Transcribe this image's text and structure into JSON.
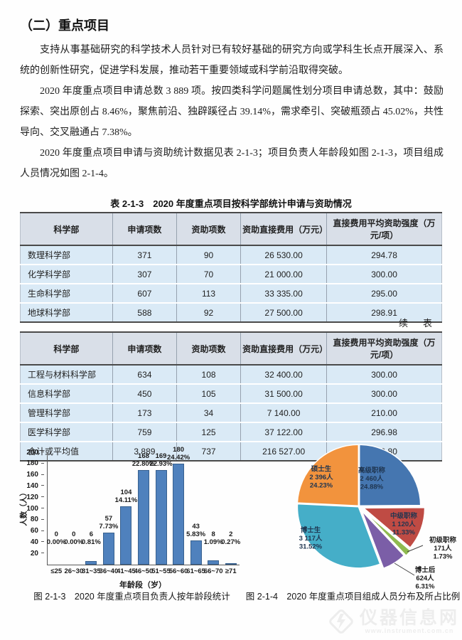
{
  "page": {
    "section_title": "（二）重点项目",
    "paragraphs": [
      "支持从事基础研究的科学技术人员针对已有较好基础的研究方向或学科生长点开展深入、系统的创新性研究，促进学科发展，推动若干重要领域或科学前沿取得突破。",
      "2020 年度重点项目申请总数 3 889 项。按四类科学问题属性划分项目申请总数，其中：鼓励探索、突出原创占 8.46%，聚焦前沿、独辟蹊径占 39.14%，需求牵引、突破瓶颈占 45.02%，共性导向、交叉融通占 7.38%。",
      "2020 年度重点项目申请与资助统计数据见表 2-1-3；项目负责人年龄段如图 2-1-3，项目组成人员情况如图 2-1-4。"
    ]
  },
  "table1": {
    "title": "表 2-1-3　2020 年度重点项目按科学部统计申请与资助情况",
    "headers": [
      "科学部",
      "申请项数",
      "资助项数",
      "资助直接费用（万元）",
      "直接费用平均资助强度（万元/项）"
    ],
    "rows": [
      [
        "数理科学部",
        "371",
        "90",
        "26 530.00",
        "294.78"
      ],
      [
        "化学科学部",
        "307",
        "70",
        "21 000.00",
        "300.00"
      ],
      [
        "生命科学部",
        "607",
        "113",
        "33 335.00",
        "295.00"
      ],
      [
        "地球科学部",
        "588",
        "92",
        "27 500.00",
        "298.91"
      ]
    ]
  },
  "table2": {
    "continuation_label": "续　表",
    "headers": [
      "科学部",
      "申请项数",
      "资助项数",
      "资助直接费用（万元）",
      "直接费用平均资助强度（万元/项）"
    ],
    "rows": [
      [
        "工程与材料科学部",
        "634",
        "108",
        "32 400.00",
        "300.00"
      ],
      [
        "信息科学部",
        "450",
        "105",
        "31 500.00",
        "300.00"
      ],
      [
        "管理科学部",
        "173",
        "34",
        "7 140.00",
        "210.00"
      ],
      [
        "医学科学部",
        "759",
        "125",
        "37 122.00",
        "296.98"
      ],
      [
        "合计或平均值",
        "3 889",
        "737",
        "216 527.00",
        "293.80"
      ]
    ]
  },
  "chart_data": [
    {
      "type": "bar",
      "caption": "图 2-1-3　2020 年度重点项目负责人按年龄段统计",
      "categories": [
        "≤25",
        "26~30",
        "31~35",
        "36~40",
        "41~45",
        "46~50",
        "51~55",
        "56~60",
        "61~65",
        "66~70",
        "≥71"
      ],
      "values": [
        0,
        0,
        6,
        57,
        104,
        168,
        169,
        180,
        43,
        8,
        2
      ],
      "percent_labels": [
        "0.00%",
        "0.00%",
        "0.81%",
        "7.73%",
        "14.11%",
        "22.80%",
        "22.93%",
        "24.42%",
        "5.83%",
        "1.09%",
        "0.27%"
      ],
      "xlabel": "年龄段（岁）",
      "ylabel": "人数（人）",
      "ylim": [
        0,
        200
      ],
      "ytick_step": 20,
      "grid": false,
      "legend": "none",
      "bar_color": "#4f81bd"
    },
    {
      "type": "pie",
      "caption": "图 2-1-4　2020 年度重点项目组成人员分布及所占比例",
      "slices": [
        {
          "label": "高级职称",
          "count": "2 460人",
          "percent": "24.88%",
          "value": 24.88,
          "color": "#4576b0",
          "explode": 1,
          "label_at": [
            178,
            60
          ],
          "label_style": "inside"
        },
        {
          "label": "中级职称",
          "count": "1 120人",
          "percent": "11.33%",
          "value": 11.33,
          "color": "#bf4b44",
          "explode": 7,
          "label_at": [
            223,
            124
          ],
          "label_style": "inside"
        },
        {
          "label": "初级职称",
          "count": "171人",
          "percent": "1.73%",
          "value": 1.73,
          "color": "#8fba50",
          "explode": 10,
          "label_at": [
            278,
            158
          ],
          "label_style": "outside"
        },
        {
          "label": "博士后",
          "count": "624人",
          "percent": "6.31%",
          "value": 6.31,
          "color": "#7b5ea7",
          "explode": 8,
          "label_at": [
            253,
            200
          ],
          "label_style": "outside"
        },
        {
          "label": "博士生",
          "count": "3 117人",
          "percent": "31.52%",
          "value": 31.52,
          "color": "#45aec8",
          "explode": 1,
          "label_at": [
            92,
            144
          ],
          "label_style": "inside"
        },
        {
          "label": "硕士生",
          "count": "2 396人",
          "percent": "24.23%",
          "value": 24.23,
          "color": "#f2933d",
          "explode": 1,
          "label_at": [
            107,
            58
          ],
          "label_style": "inside"
        }
      ],
      "leader_lines": [
        [
          [
            228,
            160
          ],
          [
            250,
            151
          ]
        ],
        [
          [
            210,
            176
          ],
          [
            238,
            193
          ]
        ]
      ]
    }
  ],
  "watermark": {
    "text": "仪器信息网",
    "subtext": "www.instrument.com.cn"
  },
  "colors": {
    "bar": "#4f81bd",
    "table_header_bg": "#d9dfe8",
    "table_row_bg": "#daeaf6",
    "inside_label_text": "#1f3550"
  }
}
